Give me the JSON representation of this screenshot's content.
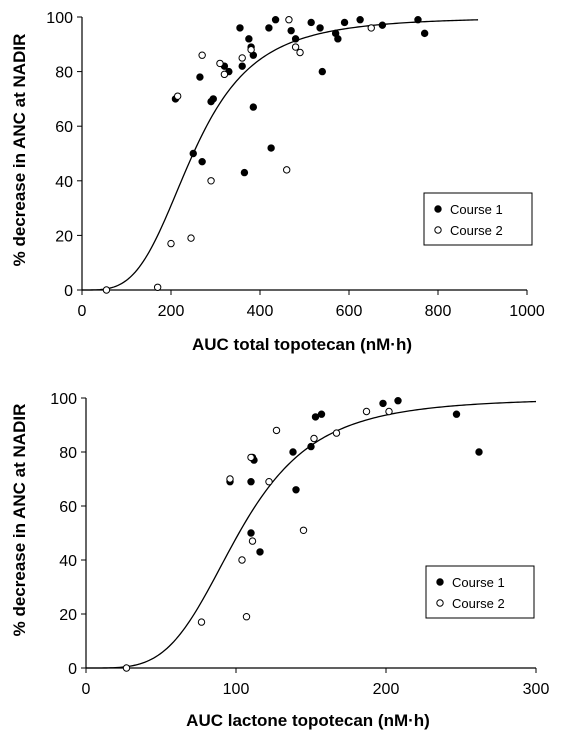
{
  "chart_data": [
    {
      "type": "scatter",
      "xlabel": "AUC total topotecan (nM·h)",
      "ylabel": "% decrease in ANC at NADIR",
      "xlim": [
        0,
        1000
      ],
      "ylim": [
        0,
        100
      ],
      "x_ticks": [
        "0",
        "200",
        "400",
        "600",
        "800",
        "1000"
      ],
      "y_ticks": [
        "0",
        "20",
        "40",
        "60",
        "80",
        "100"
      ],
      "legend_position": "right-middle",
      "curve": {
        "x50": 250,
        "hill": 3.6,
        "xmin": 0,
        "xmax": 890
      },
      "series": [
        {
          "name": "Course 1",
          "marker": "filled",
          "x": [
            210,
            250,
            265,
            270,
            290,
            295,
            320,
            330,
            355,
            360,
            365,
            375,
            380,
            385,
            385,
            420,
            425,
            435,
            470,
            480,
            515,
            535,
            540,
            570,
            575,
            590,
            625,
            675,
            755,
            770
          ],
          "y": [
            70,
            50,
            78,
            47,
            69,
            70,
            82,
            80,
            96,
            82,
            43,
            92,
            89,
            67,
            86,
            96,
            52,
            99,
            95,
            92,
            98,
            96,
            80,
            94,
            92,
            98,
            99,
            97,
            99,
            94
          ]
        },
        {
          "name": "Course 2",
          "marker": "open",
          "x": [
            55,
            170,
            200,
            215,
            245,
            270,
            290,
            310,
            320,
            360,
            380,
            460,
            465,
            480,
            490,
            650
          ],
          "y": [
            0,
            1,
            17,
            71,
            19,
            86,
            40,
            83,
            79,
            85,
            88,
            44,
            99,
            89,
            87,
            96
          ]
        }
      ]
    },
    {
      "type": "scatter",
      "xlabel": "AUC lactone topotecan (nM·h)",
      "ylabel": "% decrease in ANC at NADIR",
      "xlim": [
        0,
        300
      ],
      "ylim": [
        0,
        100
      ],
      "x_ticks": [
        "0",
        "100",
        "200",
        "300"
      ],
      "y_ticks": [
        "0",
        "20",
        "40",
        "60",
        "80",
        "100"
      ],
      "legend_position": "right-middle",
      "curve": {
        "x50": 102,
        "hill": 4.0,
        "xmin": 0,
        "xmax": 300
      },
      "series": [
        {
          "name": "Course 1",
          "marker": "filled",
          "x": [
            96,
            110,
            110,
            111,
            112,
            116,
            138,
            140,
            150,
            153,
            157,
            198,
            208,
            247,
            262
          ],
          "y": [
            69,
            69,
            50,
            78,
            77,
            43,
            80,
            66,
            82,
            93,
            94,
            98,
            99,
            94,
            80
          ],
          "y_fix": null
        },
        {
          "name": "Course 2",
          "marker": "open",
          "x": [
            27,
            77,
            96,
            104,
            107,
            110,
            111,
            122,
            127,
            145,
            152,
            167,
            187,
            202
          ],
          "y": [
            0,
            17,
            70,
            40,
            19,
            78,
            47,
            69,
            88,
            51,
            85,
            87,
            95,
            95
          ]
        }
      ]
    }
  ]
}
